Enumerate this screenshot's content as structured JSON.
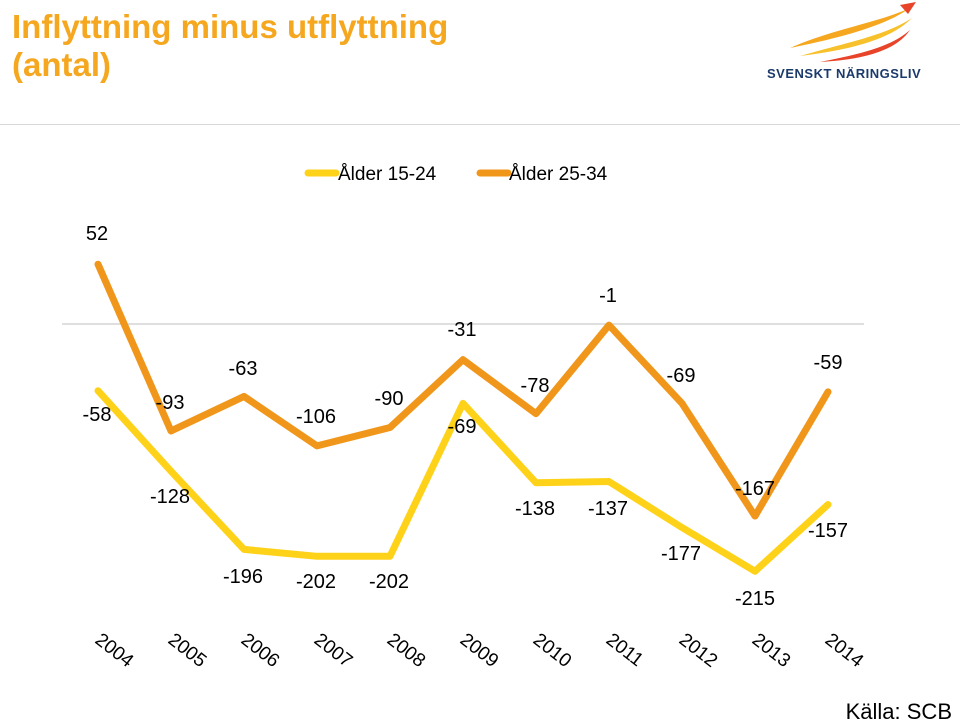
{
  "title_line1": "Inflyttning minus utflyttning",
  "title_line2": "(antal)",
  "logo_text": "SVENSKT NÄRINGSLIV",
  "source": "Källa: SCB",
  "colors": {
    "title": "#F5A71F",
    "series_15_24": "#FFD21A",
    "series_25_34": "#F0971B",
    "logo_text": "#1B3A6B"
  },
  "chart_data": {
    "type": "line",
    "categories": [
      "2004",
      "2005",
      "2006",
      "2007",
      "2008",
      "2009",
      "2010",
      "2011",
      "2012",
      "2013",
      "2014"
    ],
    "series": [
      {
        "name": "Ålder 15-24",
        "color": "#FFD21A",
        "values": [
          -58,
          -128,
          -196,
          -202,
          -202,
          -69,
          -138,
          -137,
          -177,
          -215,
          -157
        ]
      },
      {
        "name": "Ålder 25-34",
        "color": "#F0971B",
        "values": [
          52,
          -93,
          -63,
          -106,
          -90,
          -31,
          -78,
          -1,
          -69,
          -167,
          -59
        ]
      }
    ],
    "legend_position": "top-center",
    "zero_line": true,
    "grid": false
  }
}
